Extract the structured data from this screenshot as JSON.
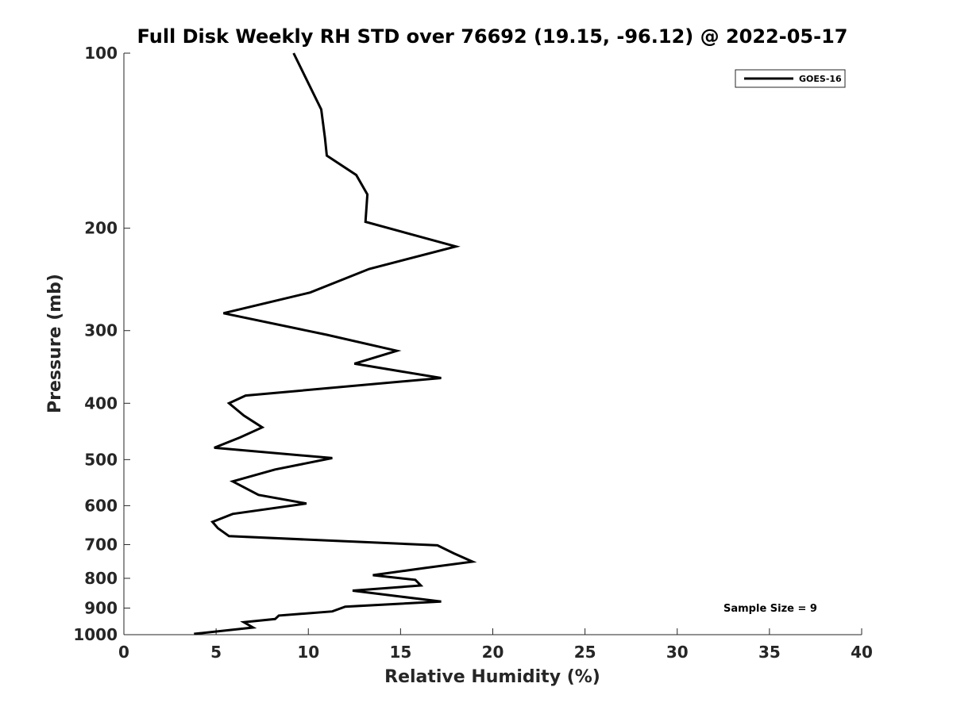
{
  "chart_data": {
    "type": "line",
    "title": "Full Disk Weekly RH STD over 76692 (19.15, -96.12) @ 2022-05-17",
    "xlabel": "Relative Humidity (%)",
    "ylabel": "Pressure (mb)",
    "xlim": [
      0,
      40
    ],
    "ylim": [
      100,
      1000
    ],
    "y_scale": "log",
    "y_reversed": true,
    "grid": false,
    "x_ticks": [
      0,
      5,
      10,
      15,
      20,
      25,
      30,
      35,
      40
    ],
    "y_ticks": [
      100,
      200,
      300,
      400,
      500,
      600,
      700,
      800,
      900,
      1000
    ],
    "legend": {
      "placement": "top-right",
      "entries": [
        "GOES-16"
      ]
    },
    "annotation": "Sample Size = 9",
    "series": [
      {
        "name": "GOES-16",
        "color": "#000000",
        "x": [
          9.2,
          10.7,
          10.9,
          11.0,
          12.6,
          13.2,
          13.1,
          18.0,
          13.3,
          10.1,
          5.4,
          11.0,
          14.8,
          12.5,
          17.2,
          6.6,
          5.7,
          6.5,
          7.5,
          6.3,
          4.9,
          11.3,
          8.2,
          5.9,
          7.3,
          9.9,
          5.9,
          4.8,
          5.1,
          5.7,
          17.0,
          17.9,
          18.9,
          16.3,
          13.5,
          15.8,
          16.1,
          12.4,
          15.0,
          17.2,
          12.0,
          11.3,
          8.4,
          8.2,
          6.5,
          7.0,
          3.8
        ],
        "y": [
          100,
          125,
          140,
          150,
          162,
          175,
          195,
          215,
          235,
          258,
          280,
          305,
          325,
          342,
          362,
          388,
          400,
          420,
          440,
          458,
          477,
          497,
          520,
          545,
          575,
          595,
          620,
          640,
          656,
          677,
          702,
          725,
          749,
          768,
          790,
          805,
          823,
          840,
          860,
          877,
          895,
          912,
          927,
          940,
          952,
          972,
          997
        ]
      }
    ]
  }
}
